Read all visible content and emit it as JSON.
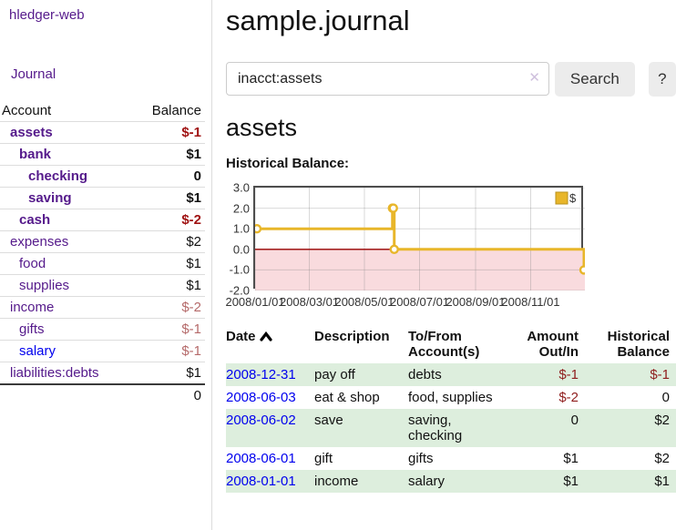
{
  "brand": "hledger-web",
  "nav": {
    "journal": "Journal"
  },
  "colors": {
    "link_purple": "#551a8b",
    "link_blue": "#0000ee",
    "negative_strong": "#a01313",
    "negative_soft": "#b56a6a",
    "negative_table": "#8f1d1d",
    "row_green": "#ddeedd",
    "chart_gold": "#e8b62a",
    "chart_negative_fill": "#f9dbde",
    "chart_zero_line": "#990000"
  },
  "sidebar": {
    "headers": {
      "account": "Account",
      "balance": "Balance"
    },
    "rows": [
      {
        "account": "assets",
        "balance": "$-1"
      },
      {
        "account": "bank",
        "balance": "$1"
      },
      {
        "account": "checking",
        "balance": "0"
      },
      {
        "account": "saving",
        "balance": "$1"
      },
      {
        "account": "cash",
        "balance": "$-2"
      },
      {
        "account": "expenses",
        "balance": "$2"
      },
      {
        "account": "food",
        "balance": "$1"
      },
      {
        "account": "supplies",
        "balance": "$1"
      },
      {
        "account": "income",
        "balance": "$-2"
      },
      {
        "account": "gifts",
        "balance": "$-1"
      },
      {
        "account": "salary",
        "balance": "$-1"
      },
      {
        "account": "liabilities:debts",
        "balance": "$1"
      }
    ],
    "total": "0"
  },
  "header": {
    "title": "sample.journal"
  },
  "search": {
    "value": "inacct:assets",
    "clear_icon": "✕",
    "button_label": "Search",
    "help_label": "?"
  },
  "account_page": {
    "title": "assets",
    "chart_title": "Historical Balance:"
  },
  "chart_data": {
    "type": "line",
    "step": true,
    "title": "Historical Balance",
    "series": [
      {
        "name": "$",
        "color": "#e8b62a",
        "points": [
          [
            "2008-01-01",
            1
          ],
          [
            "2008-06-01",
            2
          ],
          [
            "2008-06-02",
            2
          ],
          [
            "2008-06-03",
            0
          ],
          [
            "2008-12-31",
            -1
          ]
        ]
      }
    ],
    "x_ticks": [
      "2008/01/01",
      "2008/03/01",
      "2008/05/01",
      "2008/07/01",
      "2008/09/01",
      "2008/11/01"
    ],
    "y_ticks": [
      "3.0",
      "2.0",
      "1.0",
      "0.0",
      "-1.0",
      "-2.0"
    ],
    "xlim": [
      "2008-01-01",
      "2008-12-31"
    ],
    "ylim": [
      -2,
      3
    ],
    "grid": true,
    "legend_position": "top-right",
    "negative_fill": "#f9dbde",
    "zero_line_color": "#990000"
  },
  "register": {
    "headers": {
      "date": "Date",
      "description": "Description",
      "tofrom": "To/From Account(s)",
      "amount": "Amount Out/In",
      "balance": "Historical Balance"
    },
    "rows": [
      {
        "date": "2008-12-31",
        "description": "pay off",
        "tofrom": "debts",
        "amount": "$-1",
        "balance": "$-1"
      },
      {
        "date": "2008-06-03",
        "description": "eat & shop",
        "tofrom": "food, supplies",
        "amount": "$-2",
        "balance": "0"
      },
      {
        "date": "2008-06-02",
        "description": "save",
        "tofrom": "saving, checking",
        "amount": "0",
        "balance": "$2"
      },
      {
        "date": "2008-06-01",
        "description": "gift",
        "tofrom": "gifts",
        "amount": "$1",
        "balance": "$2"
      },
      {
        "date": "2008-01-01",
        "description": "income",
        "tofrom": "salary",
        "amount": "$1",
        "balance": "$1"
      }
    ]
  }
}
